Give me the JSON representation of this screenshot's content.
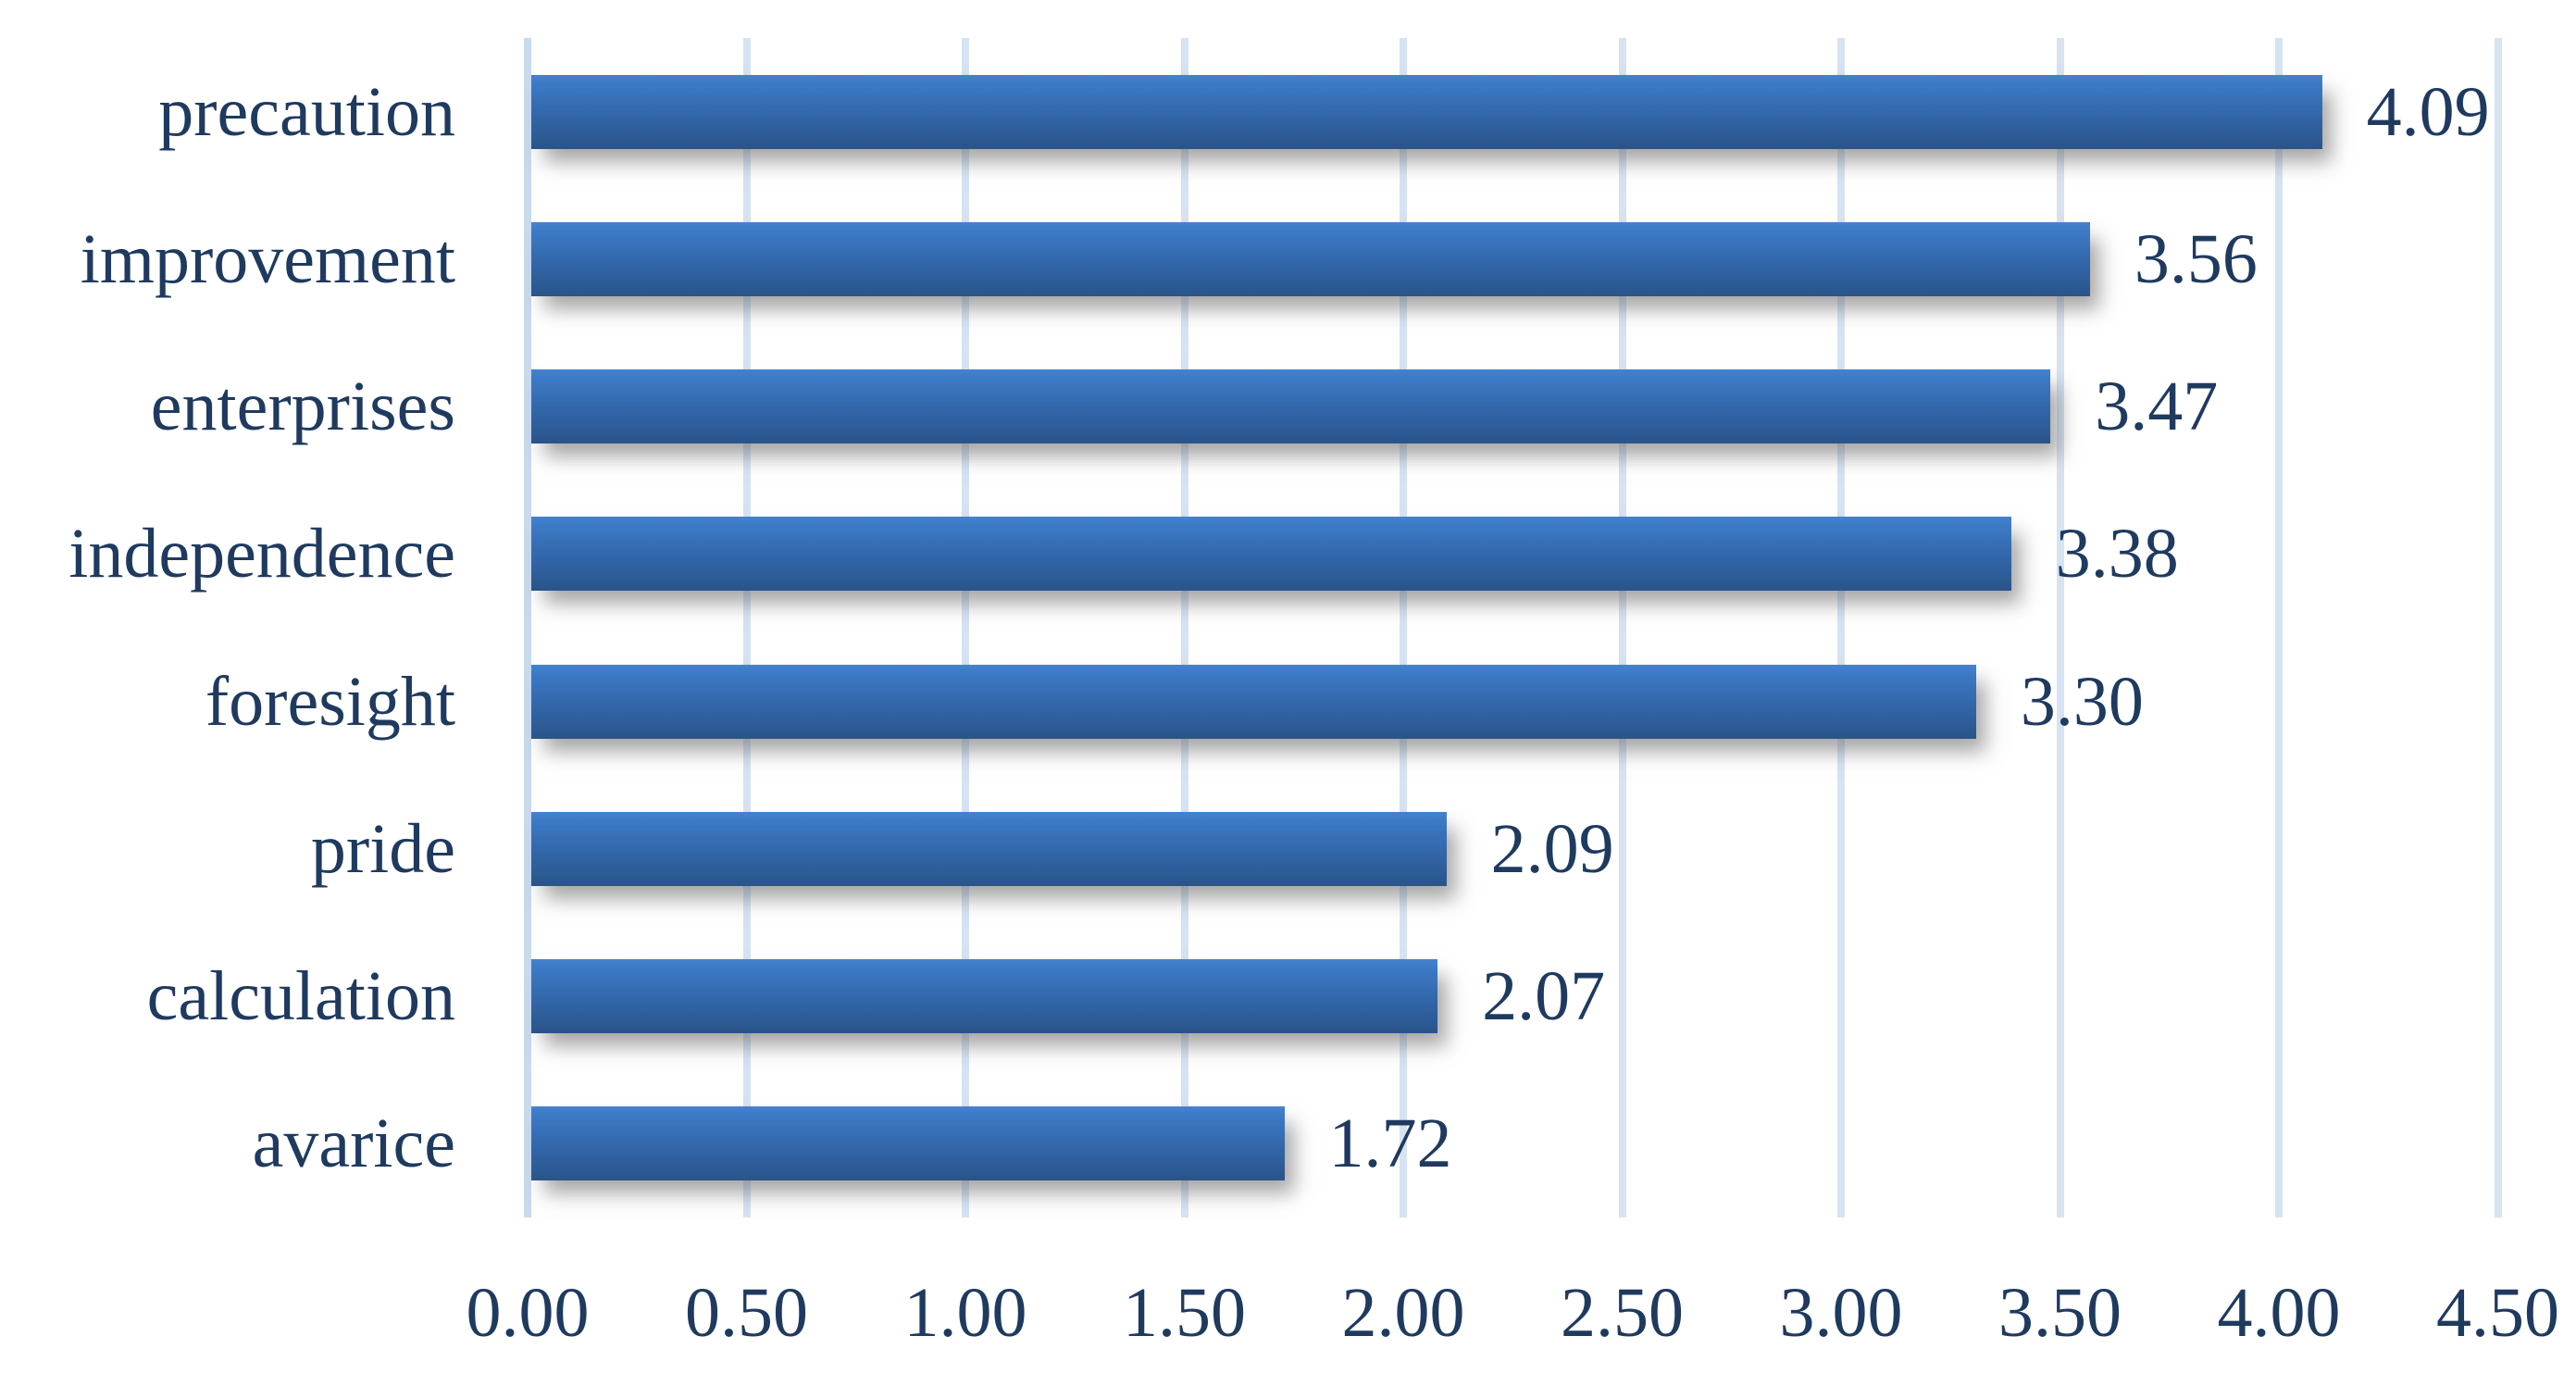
{
  "figure": {
    "background": "#FFFFFF"
  },
  "chart_data": {
    "type": "bar",
    "orientation": "horizontal",
    "title": "",
    "xlabel": "",
    "ylabel": "",
    "categories": [
      "precaution",
      "improvement",
      "enterprises",
      "independence",
      "foresight",
      "pride",
      "calculation",
      "avarice"
    ],
    "values": [
      4.09,
      3.56,
      3.47,
      3.38,
      3.3,
      2.09,
      2.07,
      1.72
    ],
    "value_labels": [
      "4.09",
      "3.56",
      "3.47",
      "3.38",
      "3.30",
      "2.09",
      "2.07",
      "1.72"
    ],
    "x_ticks": [
      0.0,
      0.5,
      1.0,
      1.5,
      2.0,
      2.5,
      3.0,
      3.5,
      4.0,
      4.5
    ],
    "x_tick_labels": [
      "0.00",
      "0.50",
      "1.00",
      "1.50",
      "2.00",
      "2.50",
      "3.00",
      "3.50",
      "4.00",
      "4.50"
    ],
    "xlim": [
      0.0,
      4.5
    ],
    "grid": "vertical",
    "legend": "none",
    "colors": {
      "bar_fill_top": "#4482CE",
      "bar_fill_bottom": "#2A5489",
      "label_text": "#1F3A5F",
      "gridline": "#D6E3F3",
      "axis_line": "#C9DAEE"
    }
  }
}
